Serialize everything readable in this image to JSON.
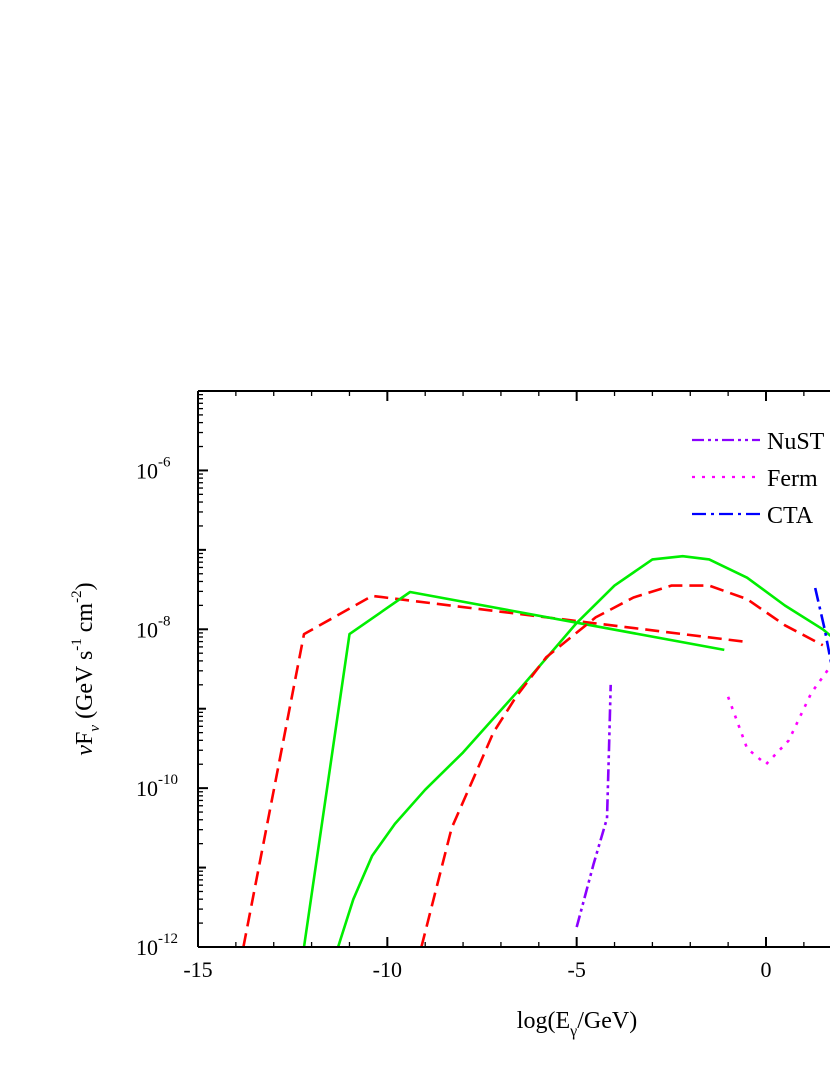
{
  "chart_data": {
    "type": "line",
    "xlabel": {
      "base": "log(E",
      "sub": "γ",
      "tail": "/GeV)"
    },
    "ylabel": {
      "nu": "ν",
      "F": "F",
      "Fsub": "ν",
      "units_a": " (GeV s",
      "exp1": "-1",
      "units_b": " cm",
      "exp2": "-2",
      "close": ")"
    },
    "xlim": [
      -15,
      3
    ],
    "ylim_log10": [
      -12,
      -5
    ],
    "y_log_scale": true,
    "x_ticks": [
      {
        "value": -15,
        "label": "-15"
      },
      {
        "value": -10,
        "label": "-10"
      },
      {
        "value": -5,
        "label": "-5"
      },
      {
        "value": 0,
        "label": "0"
      }
    ],
    "y_ticks": [
      {
        "exp": -12,
        "base": "10",
        "sup": "-12"
      },
      {
        "exp": -10,
        "base": "10",
        "sup": "-10"
      },
      {
        "exp": -8,
        "base": "10",
        "sup": "-8"
      },
      {
        "exp": -6,
        "base": "10",
        "sup": "-6"
      }
    ],
    "legend": {
      "placement": "top-right",
      "entries": [
        {
          "label": "NuST",
          "color": "#8B00FF",
          "dash": "dash-dot-dot"
        },
        {
          "label": "Ferm",
          "color": "#FF00FF",
          "dash": "dotted"
        },
        {
          "label": "CTA",
          "color": "#0000FF",
          "dash": "dash-dot"
        }
      ]
    },
    "series": [
      {
        "id": "red-1",
        "color": "#FF0000",
        "dash": "dashed",
        "log10_y": true,
        "points": [
          [
            -13.8,
            -12
          ],
          [
            -12.2,
            -8.06
          ],
          [
            -10.4,
            -7.58
          ],
          [
            -0.5,
            -8.16
          ]
        ]
      },
      {
        "id": "green-1",
        "color": "#00EE00",
        "dash": "solid",
        "log10_y": true,
        "points": [
          [
            -12.2,
            -12
          ],
          [
            -11.0,
            -8.06
          ],
          [
            -9.4,
            -7.53
          ],
          [
            -1.1,
            -8.26
          ]
        ]
      },
      {
        "id": "green-2",
        "color": "#00EE00",
        "dash": "solid",
        "log10_y": true,
        "points": [
          [
            -11.3,
            -12
          ],
          [
            -10.9,
            -11.4
          ],
          [
            -10.4,
            -10.85
          ],
          [
            -9.8,
            -10.45
          ],
          [
            -9,
            -10.02
          ],
          [
            -8,
            -9.55
          ],
          [
            -6.5,
            -8.75
          ],
          [
            -5,
            -7.92
          ],
          [
            -4,
            -7.45
          ],
          [
            -3,
            -7.12
          ],
          [
            -2.2,
            -7.08
          ],
          [
            -1.5,
            -7.12
          ],
          [
            -0.5,
            -7.35
          ],
          [
            0.5,
            -7.7
          ],
          [
            1.5,
            -8.0
          ],
          [
            2,
            -8.2
          ]
        ]
      },
      {
        "id": "red-2",
        "color": "#FF0000",
        "dash": "dashed",
        "log10_y": true,
        "points": [
          [
            -9.1,
            -12
          ],
          [
            -8.3,
            -10.5
          ],
          [
            -7.7,
            -9.85
          ],
          [
            -7.2,
            -9.3
          ],
          [
            -6.6,
            -8.85
          ],
          [
            -5.8,
            -8.35
          ],
          [
            -4.5,
            -7.85
          ],
          [
            -3.5,
            -7.6
          ],
          [
            -2.5,
            -7.45
          ],
          [
            -1.5,
            -7.45
          ],
          [
            -0.5,
            -7.62
          ],
          [
            0.5,
            -7.95
          ],
          [
            1.5,
            -8.2
          ]
        ]
      },
      {
        "id": "nustar",
        "color": "#8B00FF",
        "dash": "dash-dot-dot",
        "log10_y": true,
        "points": [
          [
            -5,
            -11.75
          ],
          [
            -4.55,
            -10.95
          ],
          [
            -4.2,
            -10.38
          ],
          [
            -4.15,
            -9.55
          ],
          [
            -4.1,
            -8.7
          ]
        ]
      },
      {
        "id": "fermi",
        "color": "#FF00FF",
        "dash": "dotted",
        "log10_y": true,
        "points": [
          [
            -1,
            -8.85
          ],
          [
            -0.5,
            -9.5
          ],
          [
            0,
            -9.7
          ],
          [
            0.6,
            -9.4
          ],
          [
            1.2,
            -8.8
          ],
          [
            1.8,
            -8.4
          ]
        ]
      },
      {
        "id": "cta",
        "color": "#0000FF",
        "dash": "dash-dot",
        "log10_y": true,
        "points": [
          [
            1.3,
            -7.48
          ],
          [
            1.55,
            -8.0
          ],
          [
            1.75,
            -8.5
          ],
          [
            1.85,
            -8.9
          ]
        ]
      }
    ]
  }
}
